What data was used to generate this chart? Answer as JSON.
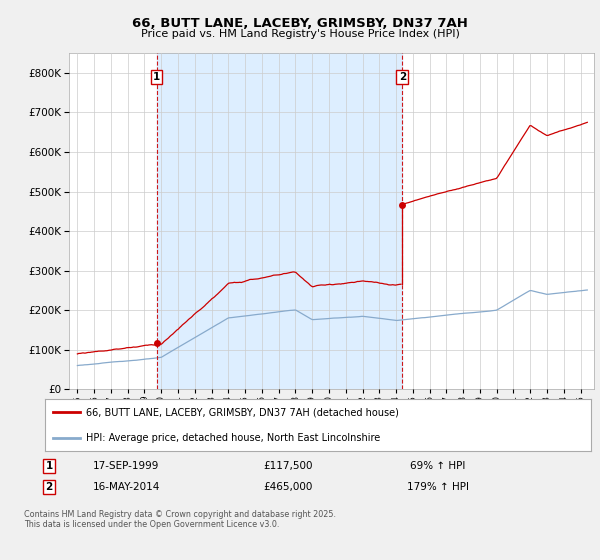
{
  "title": "66, BUTT LANE, LACEBY, GRIMSBY, DN37 7AH",
  "subtitle": "Price paid vs. HM Land Registry's House Price Index (HPI)",
  "red_label": "66, BUTT LANE, LACEBY, GRIMSBY, DN37 7AH (detached house)",
  "blue_label": "HPI: Average price, detached house, North East Lincolnshire",
  "transaction1_label": "17-SEP-1999",
  "transaction1_price": "£117,500",
  "transaction1_hpi": "69% ↑ HPI",
  "transaction2_label": "16-MAY-2014",
  "transaction2_price": "£465,000",
  "transaction2_hpi": "179% ↑ HPI",
  "footnote": "Contains HM Land Registry data © Crown copyright and database right 2025.\nThis data is licensed under the Open Government Licence v3.0.",
  "background_color": "#f0f0f0",
  "plot_bg_color": "#ffffff",
  "shaded_color": "#ddeeff",
  "red_color": "#cc0000",
  "blue_color": "#88aacc",
  "vline_color": "#cc0000",
  "marker1_x": 1999.72,
  "marker1_y": 117500,
  "marker2_x": 2014.37,
  "marker2_y": 465000,
  "vline1_x": 1999.72,
  "vline2_x": 2014.37,
  "xlim": [
    1994.5,
    2025.8
  ],
  "ylim": [
    0,
    850000
  ],
  "yticks": [
    0,
    100000,
    200000,
    300000,
    400000,
    500000,
    600000,
    700000,
    800000
  ]
}
